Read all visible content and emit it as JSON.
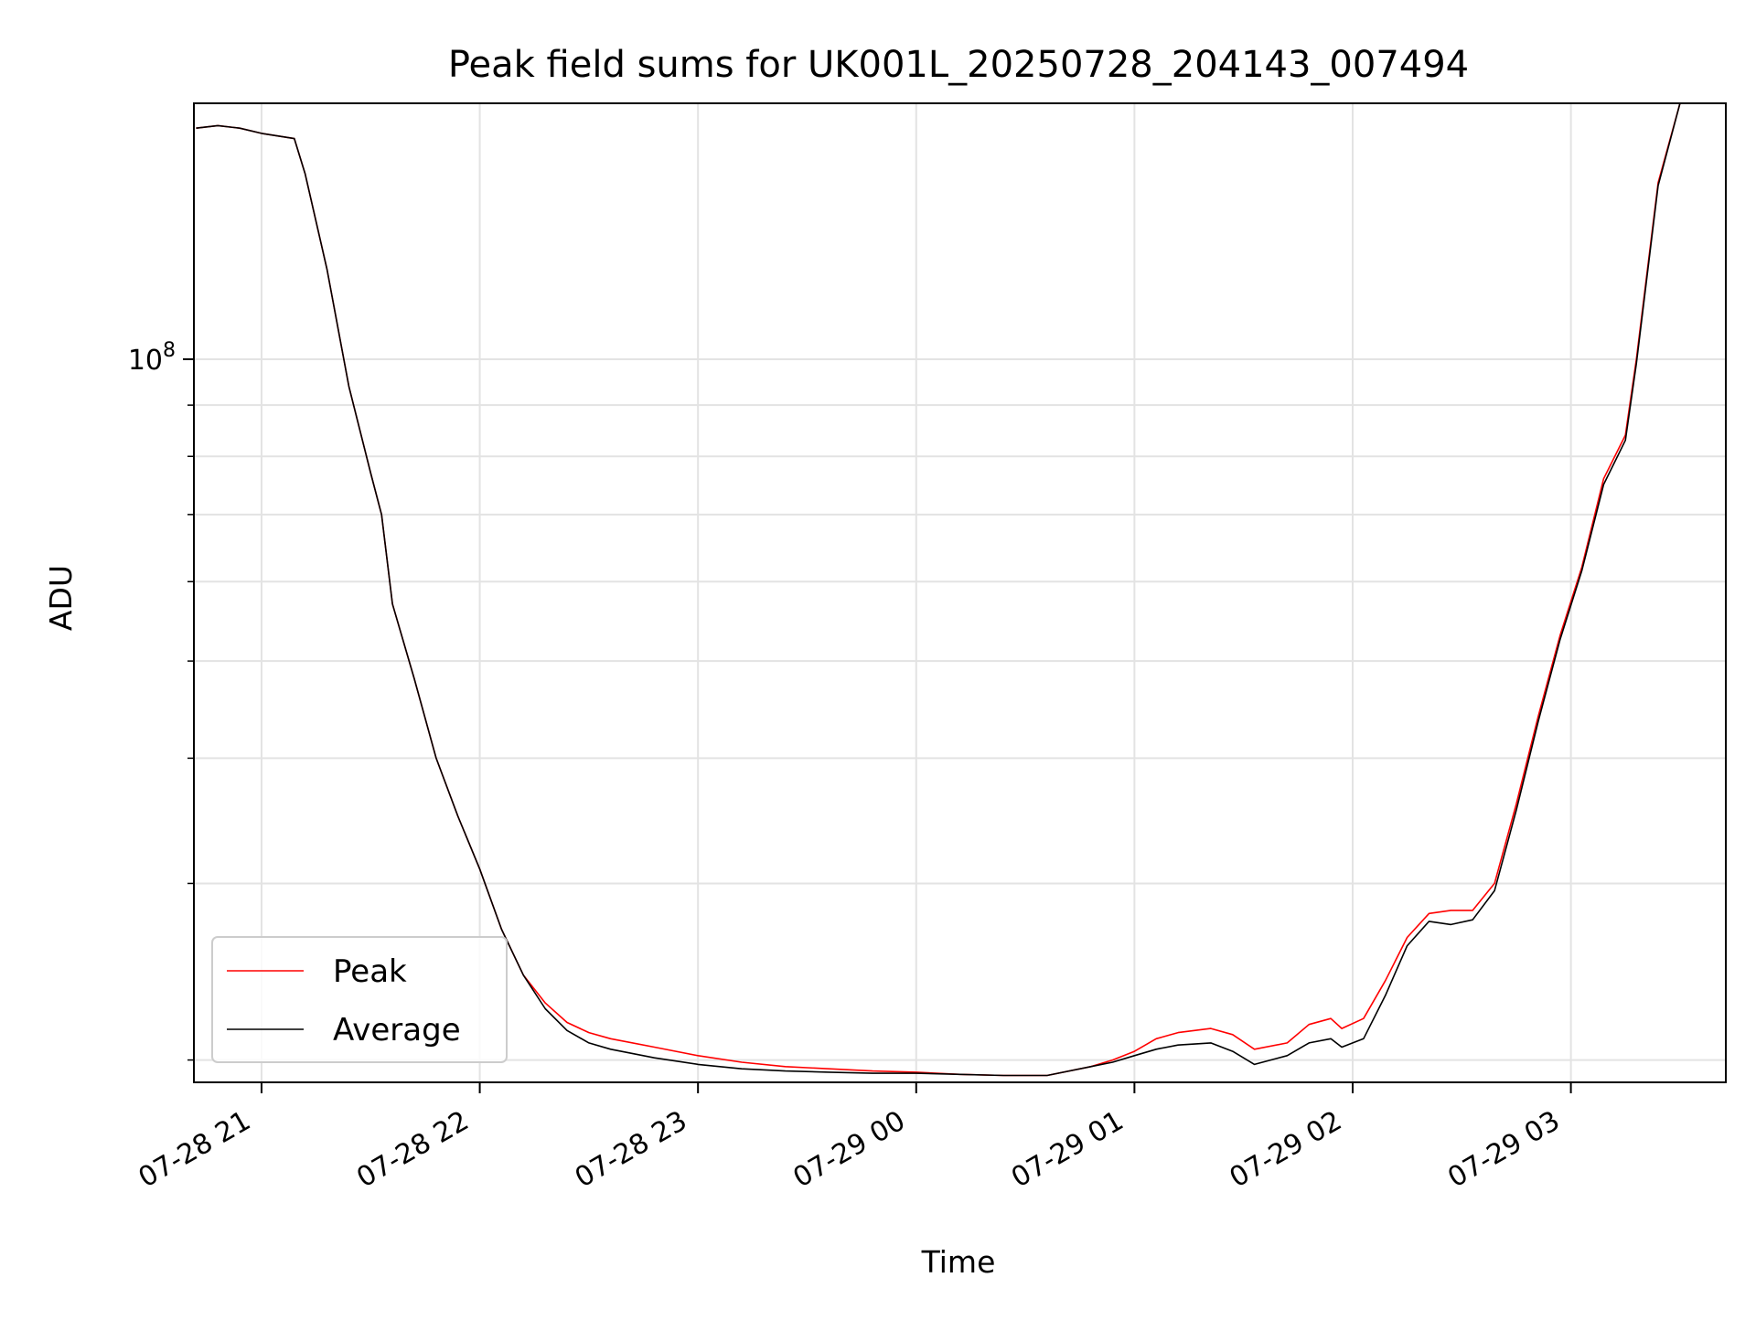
{
  "chart_data": {
    "type": "line",
    "title": "Peak field sums for UK001L_20250728_204143_007494",
    "xlabel": "Time",
    "ylabel": "ADU",
    "y_scale": "log",
    "y_major_tick_label": {
      "base": "10",
      "exponent": "8"
    },
    "x_tick_labels": [
      "07-28 21",
      "07-28 22",
      "07-28 23",
      "07-29 00",
      "07-29 01",
      "07-29 02",
      "07-29 03"
    ],
    "x_tick_hours": [
      21,
      22,
      23,
      24,
      25,
      26,
      27
    ],
    "x_range_hours": [
      20.69,
      27.71
    ],
    "y_range": [
      19000000,
      180000000
    ],
    "y_minor_ticks": [
      20000000,
      30000000,
      40000000,
      50000000,
      60000000,
      70000000,
      80000000,
      90000000,
      200000000
    ],
    "grid": true,
    "legend_position": "lower-left",
    "x_units": "hours since 2025-07-28 00:00",
    "series": [
      {
        "name": "Peak",
        "color": "#ff0000",
        "x": [
          20.7,
          20.8,
          20.9,
          21.0,
          21.15,
          21.2,
          21.3,
          21.4,
          21.5,
          21.55,
          21.6,
          21.7,
          21.8,
          21.9,
          22.0,
          22.1,
          22.2,
          22.3,
          22.4,
          22.5,
          22.6,
          22.8,
          23.0,
          23.2,
          23.4,
          23.6,
          23.8,
          24.0,
          24.2,
          24.4,
          24.6,
          24.8,
          24.9,
          25.0,
          25.1,
          25.2,
          25.35,
          25.45,
          25.55,
          25.7,
          25.8,
          25.9,
          25.95,
          26.05,
          26.15,
          26.25,
          26.35,
          26.45,
          26.55,
          26.65,
          26.75,
          26.85,
          26.95,
          27.05,
          27.15,
          27.25,
          27.3,
          27.4,
          27.5,
          27.71
        ],
        "y": [
          170000000,
          171000000,
          170000000,
          168000000,
          166000000,
          153000000,
          123000000,
          94000000,
          77000000,
          70000000,
          57000000,
          48000000,
          40000000,
          35000000,
          31000000,
          27000000,
          24300000,
          22800000,
          21800000,
          21300000,
          21000000,
          20600000,
          20200000,
          19900000,
          19700000,
          19600000,
          19500000,
          19450000,
          19350000,
          19300000,
          19300000,
          19700000,
          20000000,
          20400000,
          21000000,
          21300000,
          21500000,
          21200000,
          20500000,
          20800000,
          21700000,
          22000000,
          21500000,
          22000000,
          24000000,
          26500000,
          28000000,
          28200000,
          28200000,
          30000000,
          36000000,
          44000000,
          53000000,
          62000000,
          76000000,
          84000000,
          100000000,
          150000000,
          180000000,
          180000000
        ]
      },
      {
        "name": "Average",
        "color": "#000000",
        "x": [
          20.7,
          20.8,
          20.9,
          21.0,
          21.15,
          21.2,
          21.3,
          21.4,
          21.5,
          21.55,
          21.6,
          21.7,
          21.8,
          21.9,
          22.0,
          22.1,
          22.2,
          22.3,
          22.4,
          22.5,
          22.6,
          22.8,
          23.0,
          23.2,
          23.4,
          23.6,
          23.8,
          24.0,
          24.2,
          24.4,
          24.6,
          24.8,
          24.9,
          25.0,
          25.1,
          25.2,
          25.35,
          25.45,
          25.55,
          25.7,
          25.8,
          25.9,
          25.95,
          26.05,
          26.15,
          26.25,
          26.35,
          26.45,
          26.55,
          26.65,
          26.75,
          26.85,
          26.95,
          27.05,
          27.15,
          27.25,
          27.3,
          27.4,
          27.5,
          27.71
        ],
        "y": [
          170000000,
          171000000,
          170000000,
          168000000,
          166000000,
          153000000,
          123000000,
          94000000,
          77000000,
          70000000,
          57000000,
          48000000,
          40000000,
          35000000,
          31000000,
          27000000,
          24300000,
          22500000,
          21400000,
          20800000,
          20500000,
          20100000,
          19800000,
          19600000,
          19500000,
          19450000,
          19400000,
          19400000,
          19350000,
          19300000,
          19300000,
          19700000,
          19900000,
          20200000,
          20500000,
          20700000,
          20800000,
          20400000,
          19800000,
          20200000,
          20800000,
          21000000,
          20600000,
          21000000,
          23200000,
          26000000,
          27500000,
          27300000,
          27600000,
          29500000,
          35500000,
          43500000,
          52500000,
          61500000,
          75000000,
          83000000,
          99000000,
          149000000,
          180000000,
          180000000
        ]
      }
    ]
  }
}
